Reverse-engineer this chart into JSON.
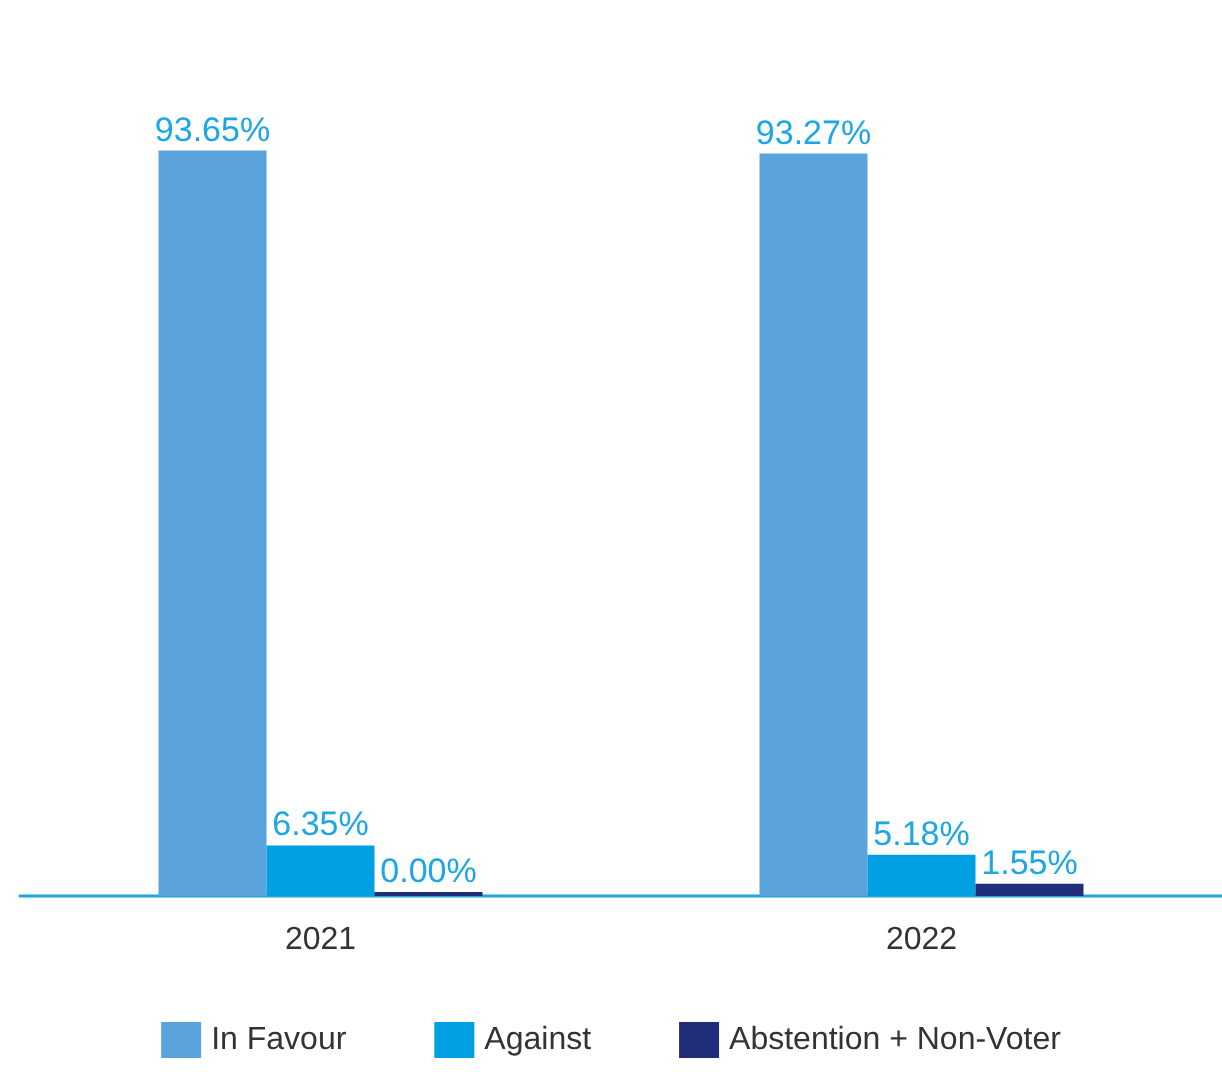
{
  "chart_data": {
    "type": "bar",
    "categories": [
      "2021",
      "2022"
    ],
    "series": [
      {
        "name": "In Favour",
        "color": "#5ba3dc",
        "values": [
          93.65,
          93.27
        ],
        "value_labels": [
          "93.65%",
          "93.27%"
        ]
      },
      {
        "name": "Against",
        "color": "#00a0e3",
        "values": [
          6.35,
          5.18
        ],
        "value_labels": [
          "6.35%",
          "5.18%"
        ]
      },
      {
        "name": "Abstention + Non-Voter",
        "color": "#1f2d7b",
        "values": [
          0.0,
          1.55
        ],
        "value_labels": [
          "0.00%",
          "1.55%"
        ]
      }
    ],
    "legend": "bottom",
    "grid": false
  }
}
